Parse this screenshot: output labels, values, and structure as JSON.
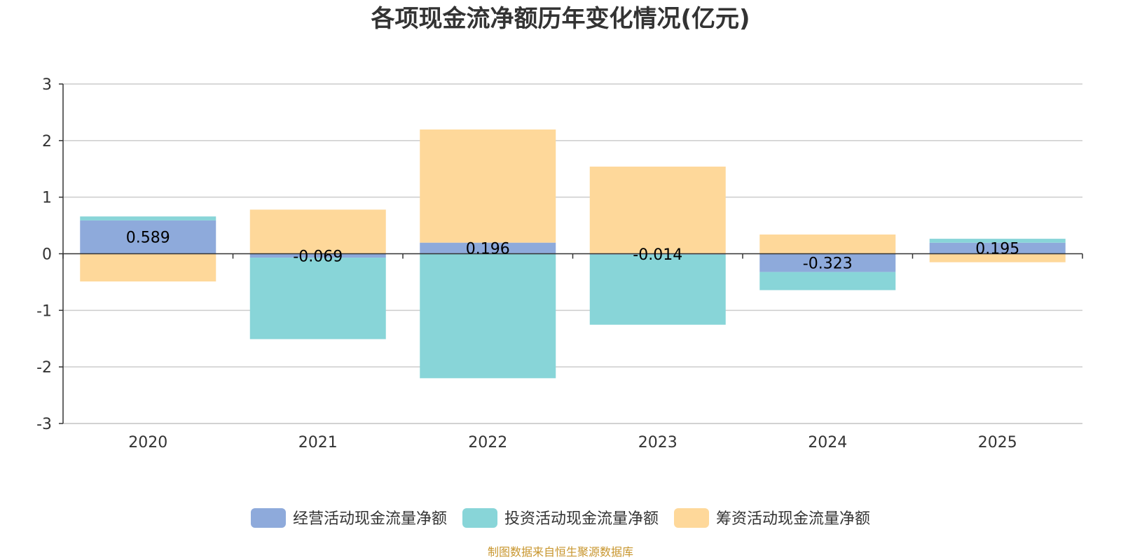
{
  "chart_data": {
    "type": "bar",
    "stacked": true,
    "title": "各项现金流净额历年变化情况(亿元)",
    "categories": [
      "2020",
      "2021",
      "2022",
      "2023",
      "2024",
      "2025"
    ],
    "ylim": [
      -3,
      3
    ],
    "yticks": [
      3,
      2,
      1,
      0,
      -1,
      -2,
      -3
    ],
    "grid": true,
    "legend_position": "bottom",
    "series": [
      {
        "name": "经营活动现金流量净额",
        "color": "#8eaadb",
        "values": [
          0.589,
          -0.069,
          0.196,
          -0.014,
          -0.323,
          0.195
        ],
        "labels": [
          "0.589",
          "-0.069",
          "0.196",
          "-0.014",
          "-0.323",
          "0.195"
        ]
      },
      {
        "name": "投资活动现金流量净额",
        "color": "#88d5d8",
        "values": [
          0.07,
          -1.44,
          -2.2,
          -1.24,
          -0.32,
          0.07
        ]
      },
      {
        "name": "筹资活动现金流量净额",
        "color": "#fed89a",
        "values": [
          -0.49,
          0.78,
          2.0,
          1.54,
          0.34,
          -0.15
        ]
      }
    ],
    "source": "制图数据来自恒生聚源数据库"
  }
}
